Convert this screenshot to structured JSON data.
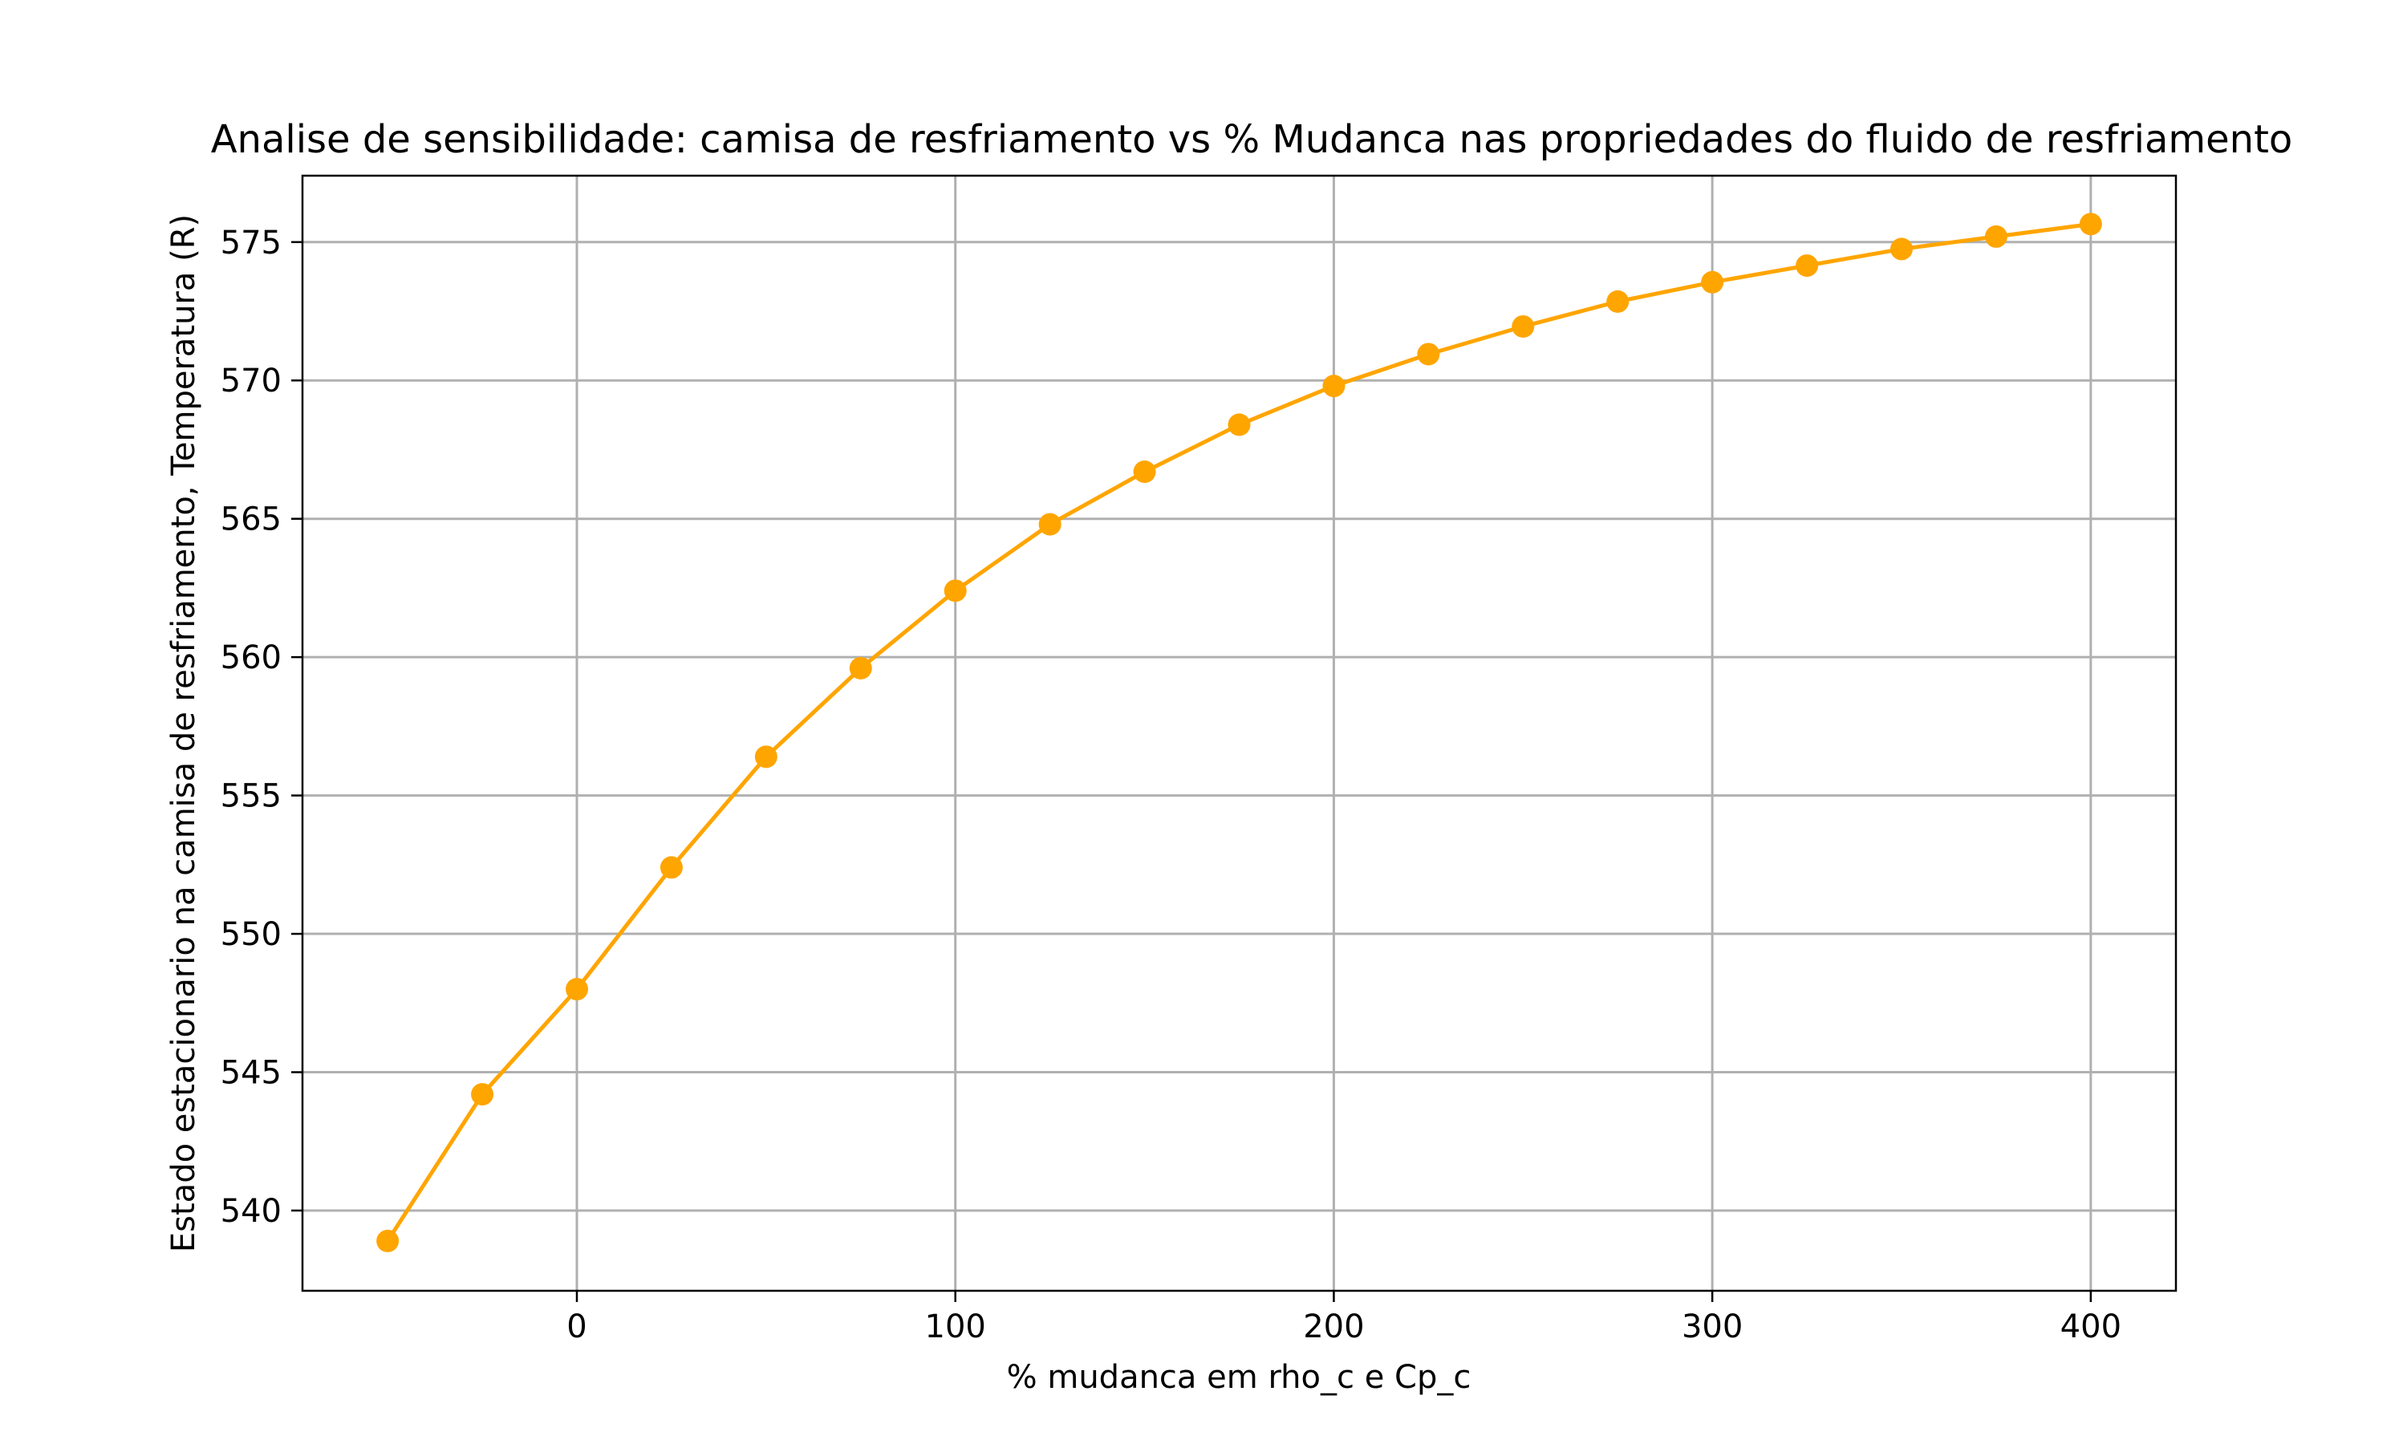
{
  "chart_data": {
    "type": "line",
    "title": "Analise de sensibilidade: camisa de resfriamento vs % Mudanca nas propriedades do fluido de resfriamento",
    "xlabel": "% mudanca em rho_c e Cp_c",
    "ylabel": "Estado estacionario na camisa de resfriamento, Temperatura (R)",
    "xlim": [
      -72.5,
      422.5
    ],
    "ylim": [
      537.1,
      577.4
    ],
    "xticks": [
      0,
      100,
      200,
      300,
      400
    ],
    "yticks": [
      540,
      545,
      550,
      555,
      560,
      565,
      570,
      575
    ],
    "grid": true,
    "series": [
      {
        "color": "#ffa500",
        "marker": "circle",
        "x": [
          -50,
          -25,
          0,
          25,
          50,
          75,
          100,
          125,
          150,
          175,
          200,
          225,
          250,
          275,
          300,
          325,
          350,
          375,
          400
        ],
        "y": [
          538.9,
          544.2,
          548.0,
          552.4,
          556.4,
          559.6,
          562.4,
          564.8,
          566.7,
          568.4,
          569.8,
          570.95,
          571.95,
          572.85,
          573.55,
          574.15,
          574.75,
          575.2,
          575.65
        ]
      }
    ]
  }
}
